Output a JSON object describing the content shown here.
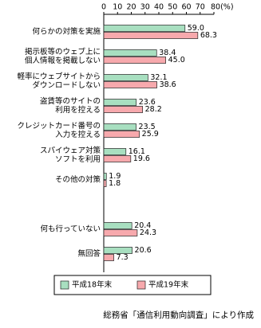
{
  "chart_data": {
    "type": "bar",
    "orientation": "horizontal",
    "categories": [
      [
        "何らかの対策を実施"
      ],
      [
        "掲示板等のウェブ上に",
        "個人情報を掲載しない"
      ],
      [
        "軽率にウェブサイトから",
        "ダウンロードしない"
      ],
      [
        "盗賃等のサイトの",
        "利用を控える"
      ],
      [
        "クレジットカード番号の",
        "入力を控える"
      ],
      [
        "スパイウェア対策",
        "ソフトを利用"
      ],
      [
        "その他の対策"
      ],
      null,
      [
        "何も行っていない"
      ],
      [
        "無回答"
      ]
    ],
    "series": [
      {
        "name": "平成18年末",
        "color": "#a8dfc0",
        "values": [
          59.0,
          38.4,
          32.1,
          23.6,
          23.5,
          16.1,
          1.9,
          null,
          20.4,
          20.6
        ],
        "value_labels": [
          "59.0",
          "38.4",
          "32.1",
          "23.6",
          "23.5",
          "16.1",
          "1.9",
          null,
          "20.4",
          "20.6"
        ]
      },
      {
        "name": "平成19年末",
        "color": "#f7a9ad",
        "values": [
          68.3,
          45.0,
          38.6,
          28.2,
          25.9,
          19.6,
          1.8,
          null,
          24.3,
          7.3
        ],
        "value_labels": [
          "68.3",
          "45.0",
          "38.6",
          "28.2",
          "25.9",
          "19.6",
          "1.8",
          null,
          "24.3",
          "7.3"
        ]
      }
    ],
    "xlim": [
      0,
      80
    ],
    "xticks": [
      0,
      10,
      20,
      30,
      40,
      50,
      60,
      70,
      {
        "value": 80,
        "label": "80(%)"
      }
    ],
    "source": "総務省「通信利用動向調査」により作成"
  }
}
